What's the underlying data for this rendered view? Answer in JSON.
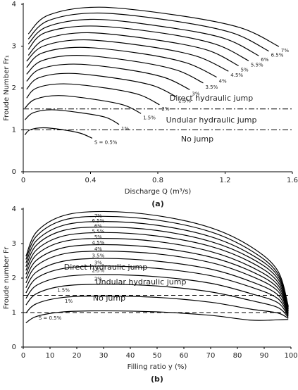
{
  "chart_data": [
    {
      "type": "line",
      "color": "#000000",
      "line_style": "solid",
      "xlabel": "Discharge Q (m³/s)",
      "ylabel": "Froude Number Fr₁",
      "caption": "(a)",
      "xlim": [
        0,
        1.6
      ],
      "xticks": [
        0,
        0.4,
        0.8,
        1.2,
        1.6
      ],
      "ylim": [
        0,
        4
      ],
      "yticks": [
        0,
        1,
        2,
        3,
        4
      ],
      "hlines": [
        1.5,
        1
      ],
      "hline_style": "dash-dot",
      "annotations": [
        "Direct hydraulic jump",
        "Undular hydraulic jump",
        "No jump"
      ],
      "series": [
        {
          "name": "S = 0.5%",
          "x": [
            0.01,
            0.04,
            0.12,
            0.24,
            0.34,
            0.41
          ],
          "values": [
            0.88,
            1.0,
            1.05,
            1.0,
            0.92,
            0.8
          ]
        },
        {
          "name": "1%",
          "x": [
            0.01,
            0.06,
            0.17,
            0.34,
            0.49,
            0.57
          ],
          "values": [
            1.24,
            1.41,
            1.48,
            1.41,
            1.3,
            1.13
          ]
        },
        {
          "name": "1.5%",
          "x": [
            0.01,
            0.07,
            0.21,
            0.42,
            0.6,
            0.7
          ],
          "values": [
            1.52,
            1.73,
            1.82,
            1.73,
            1.59,
            1.39
          ]
        },
        {
          "name": "2%",
          "x": [
            0.02,
            0.08,
            0.24,
            0.49,
            0.69,
            0.81
          ],
          "values": [
            1.76,
            2.0,
            2.1,
            2.0,
            1.84,
            1.6
          ]
        },
        {
          "name": "2.5%",
          "x": [
            0.02,
            0.09,
            0.27,
            0.54,
            0.77,
            0.91
          ],
          "values": [
            1.97,
            2.24,
            2.35,
            2.24,
            2.06,
            1.79
          ]
        },
        {
          "name": "3%",
          "x": [
            0.02,
            0.1,
            0.3,
            0.6,
            0.84,
            0.99
          ],
          "values": [
            2.16,
            2.45,
            2.57,
            2.45,
            2.25,
            1.96
          ]
        },
        {
          "name": "3.5%",
          "x": [
            0.02,
            0.11,
            0.32,
            0.64,
            0.91,
            1.07
          ],
          "values": [
            2.33,
            2.65,
            2.78,
            2.65,
            2.43,
            2.12
          ]
        },
        {
          "name": "4%",
          "x": [
            0.02,
            0.11,
            0.34,
            0.69,
            0.97,
            1.15
          ],
          "values": [
            2.49,
            2.83,
            2.97,
            2.83,
            2.6,
            2.26
          ]
        },
        {
          "name": "4.5%",
          "x": [
            0.02,
            0.12,
            0.36,
            0.73,
            1.03,
            1.22
          ],
          "values": [
            2.64,
            3.0,
            3.15,
            3.0,
            2.76,
            2.4
          ]
        },
        {
          "name": "5%",
          "x": [
            0.03,
            0.13,
            0.38,
            0.77,
            1.09,
            1.28
          ],
          "values": [
            2.78,
            3.16,
            3.32,
            3.16,
            2.91,
            2.53
          ]
        },
        {
          "name": "5.5%",
          "x": [
            0.03,
            0.13,
            0.4,
            0.81,
            1.14,
            1.34
          ],
          "values": [
            2.92,
            3.32,
            3.48,
            3.32,
            3.05,
            2.65
          ]
        },
        {
          "name": "6%",
          "x": [
            0.03,
            0.14,
            0.42,
            0.84,
            1.19,
            1.4
          ],
          "values": [
            3.05,
            3.46,
            3.64,
            3.46,
            3.19,
            2.77
          ]
        },
        {
          "name": "6.5%",
          "x": [
            0.03,
            0.15,
            0.44,
            0.88,
            1.24,
            1.46
          ],
          "values": [
            3.17,
            3.61,
            3.79,
            3.61,
            3.32,
            2.88
          ]
        },
        {
          "name": "7%",
          "x": [
            0.03,
            0.15,
            0.45,
            0.91,
            1.29,
            1.52
          ],
          "values": [
            3.29,
            3.74,
            3.93,
            3.74,
            3.44,
            2.99
          ]
        }
      ]
    },
    {
      "type": "line",
      "color": "#000000",
      "line_style": "solid",
      "xlabel": "Filling ratio y (%)",
      "ylabel": "Froude number Fr",
      "caption": "(b)",
      "xlim": [
        0,
        100
      ],
      "xticks": [
        0,
        10,
        20,
        30,
        40,
        50,
        60,
        70,
        80,
        90,
        100
      ],
      "ylim": [
        0,
        4
      ],
      "yticks": [
        0,
        1,
        2,
        3,
        4
      ],
      "hlines": [
        1.5,
        1
      ],
      "hline_style": "dashed",
      "annotations": [
        "Direct hydraulic jump",
        "Undular hydraulic jump",
        "No jump"
      ],
      "x": [
        1,
        5,
        15,
        30,
        50,
        70,
        85,
        95,
        99
      ],
      "series": [
        {
          "name": "S = 0.5%",
          "values": [
            0.7,
            0.89,
            1.02,
            1.05,
            1.02,
            0.92,
            0.78,
            0.79,
            0.8
          ]
        },
        {
          "name": "1%",
          "values": [
            0.99,
            1.26,
            1.44,
            1.48,
            1.44,
            1.3,
            1.1,
            0.99,
            0.83
          ]
        },
        {
          "name": "1.5%",
          "values": [
            1.22,
            1.55,
            1.77,
            1.82,
            1.77,
            1.6,
            1.35,
            1.15,
            0.86
          ]
        },
        {
          "name": "2%",
          "values": [
            1.41,
            1.79,
            2.04,
            2.1,
            2.04,
            1.85,
            1.55,
            1.29,
            0.89
          ]
        },
        {
          "name": "2.5%",
          "values": [
            1.57,
            2.0,
            2.28,
            2.35,
            2.28,
            2.07,
            1.74,
            1.41,
            0.92
          ]
        },
        {
          "name": "3%",
          "values": [
            1.72,
            2.18,
            2.49,
            2.57,
            2.49,
            2.26,
            1.9,
            1.52,
            0.95
          ]
        },
        {
          "name": "3.5%",
          "values": [
            1.86,
            2.36,
            2.7,
            2.78,
            2.7,
            2.45,
            2.06,
            1.63,
            0.98
          ]
        },
        {
          "name": "4%",
          "values": [
            1.99,
            2.52,
            2.88,
            2.97,
            2.88,
            2.61,
            2.2,
            1.72,
            1.01
          ]
        },
        {
          "name": "4.5%",
          "values": [
            2.11,
            2.68,
            3.06,
            3.15,
            3.06,
            2.77,
            2.33,
            1.81,
            1.04
          ]
        },
        {
          "name": "5%",
          "values": [
            2.22,
            2.82,
            3.22,
            3.32,
            3.22,
            2.92,
            2.46,
            1.9,
            1.07
          ]
        },
        {
          "name": "5.5%",
          "values": [
            2.33,
            2.96,
            3.38,
            3.48,
            3.38,
            3.06,
            2.58,
            1.99,
            1.1
          ]
        },
        {
          "name": "6%",
          "values": [
            2.44,
            3.09,
            3.53,
            3.64,
            3.53,
            3.2,
            2.69,
            2.07,
            1.13
          ]
        },
        {
          "name": "6.5%",
          "values": [
            2.54,
            3.22,
            3.68,
            3.79,
            3.68,
            3.34,
            2.8,
            2.14,
            1.16
          ]
        },
        {
          "name": "7%",
          "values": [
            2.63,
            3.34,
            3.81,
            3.93,
            3.81,
            3.46,
            2.91,
            2.22,
            1.19
          ]
        }
      ]
    }
  ]
}
